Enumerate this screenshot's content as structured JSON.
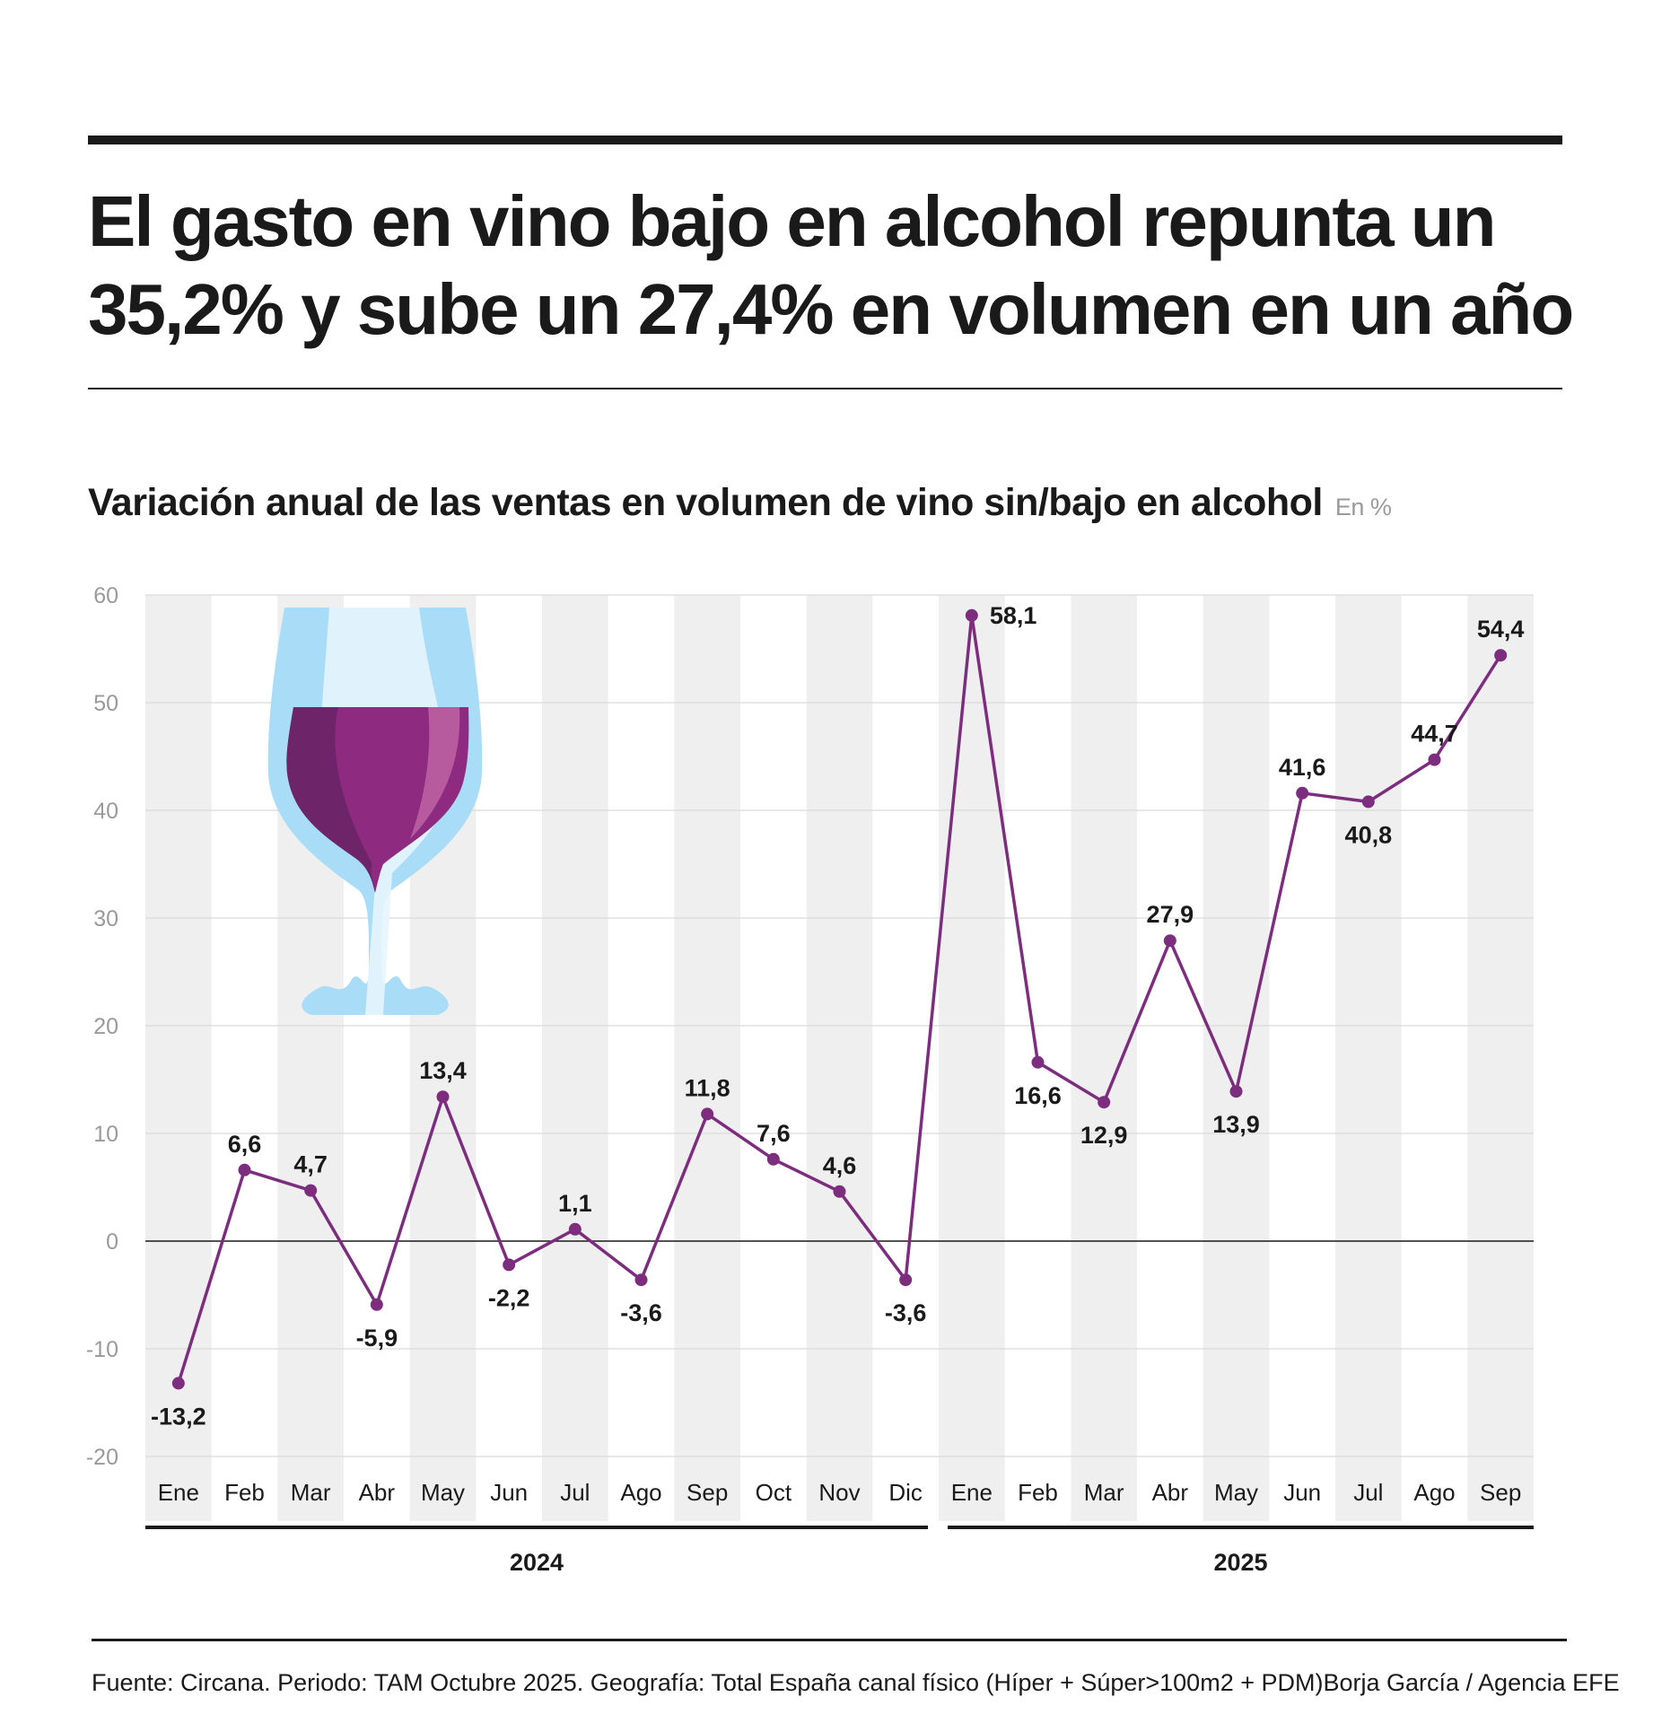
{
  "title": "El gasto en vino bajo en alcohol repunta un 35,2% y sube un 27,4% en volumen en un año",
  "footer": {
    "source": "Fuente: Circana. Periodo: TAM Octubre 2025. Geografía: Total España canal físico (Híper + Súper>100m2 + PDM)",
    "credit": "Borja García / Agencia EFE"
  },
  "colors": {
    "line": "#7d2d7e",
    "stripe": "#efefef",
    "grid": "#d9d9d9",
    "axis_text": "#9a9a9a"
  },
  "chart_data": {
    "type": "line",
    "title": "Variación anual de las ventas en volumen de vino sin/bajo en alcohol",
    "unit": "En %",
    "ylim": [
      -20,
      60
    ],
    "yticks": [
      60,
      50,
      40,
      30,
      20,
      10,
      0,
      -10,
      -20
    ],
    "grid": true,
    "categories": [
      "Ene",
      "Feb",
      "Mar",
      "Abr",
      "May",
      "Jun",
      "Jul",
      "Ago",
      "Sep",
      "Oct",
      "Nov",
      "Dic",
      "Ene",
      "Feb",
      "Mar",
      "Abr",
      "May",
      "Jun",
      "Jul",
      "Ago",
      "Sep"
    ],
    "years": [
      {
        "label": "2024",
        "months": 12
      },
      {
        "label": "2025",
        "months": 9
      }
    ],
    "values": [
      -13.2,
      6.6,
      4.7,
      -5.9,
      13.4,
      -2.2,
      1.1,
      -3.6,
      11.8,
      7.6,
      4.6,
      -3.6,
      58.1,
      16.6,
      12.9,
      27.9,
      13.9,
      41.6,
      40.8,
      44.7,
      54.4
    ],
    "labels": [
      "-13,2",
      "6,6",
      "4,7",
      "-5,9",
      "13,4",
      "-2,2",
      "1,1",
      "-3,6",
      "11,8",
      "7,6",
      "4,6",
      "-3,6",
      "58,1",
      "16,6",
      "12,9",
      "27,9",
      "13,9",
      "41,6",
      "40,8",
      "44,7",
      "54,4"
    ],
    "decoration": "wine-glass-icon"
  }
}
